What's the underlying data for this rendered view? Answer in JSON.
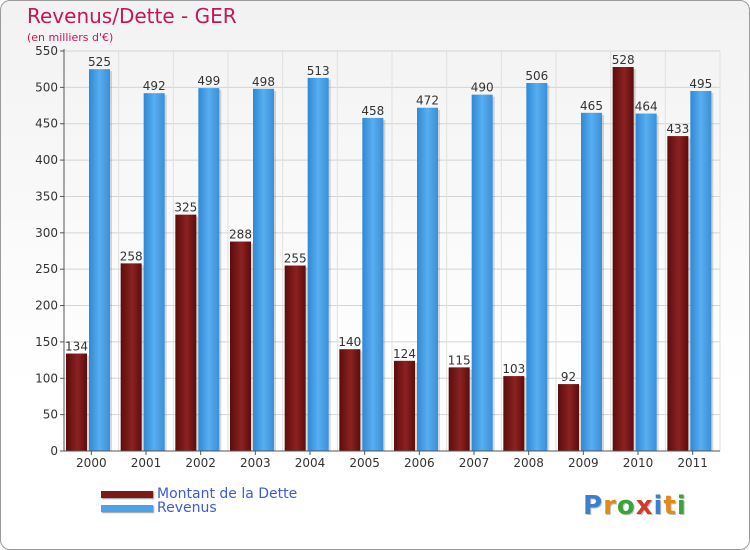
{
  "chart_data": {
    "type": "bar",
    "title": "Revenus/Dette - GER",
    "subtitle": "(en milliers d'€)",
    "xlabel": "",
    "ylabel": "",
    "ylim": [
      0,
      550
    ],
    "yticks": [
      0,
      50,
      100,
      150,
      200,
      250,
      300,
      350,
      400,
      450,
      500,
      550
    ],
    "categories": [
      "2000",
      "2001",
      "2002",
      "2003",
      "2004",
      "2005",
      "2006",
      "2007",
      "2008",
      "2009",
      "2010",
      "2011"
    ],
    "series": [
      {
        "name": "Montant de la Dette",
        "color": "#7a1a1a",
        "values": [
          134,
          258,
          325,
          288,
          255,
          140,
          124,
          115,
          103,
          92,
          528,
          433
        ]
      },
      {
        "name": "Revenus",
        "color": "#4aa3e8",
        "values": [
          525,
          492,
          499,
          498,
          513,
          458,
          472,
          490,
          506,
          465,
          464,
          495
        ]
      }
    ],
    "grid": true,
    "legend": "bottom-left"
  },
  "legend": {
    "items": [
      {
        "label": "Montant de la Dette",
        "color": "#7a1a1a"
      },
      {
        "label": "Revenus",
        "color": "#4aa3e8"
      }
    ]
  },
  "logo": {
    "letters": [
      "P",
      "r",
      "o",
      "x",
      "i",
      "t",
      "i"
    ],
    "colors": [
      "#3a7fd0",
      "#e08a1e",
      "#3aa33a",
      "#d23b2a",
      "#3a7fd0",
      "#e08a1e",
      "#3aa33a"
    ]
  }
}
